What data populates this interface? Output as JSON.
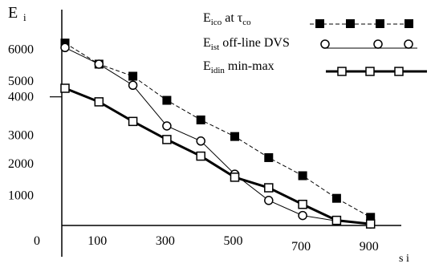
{
  "chart_data": {
    "type": "line",
    "ylabel": "E",
    "ylabel_sub": "i",
    "xlabel_fragment": "s i",
    "x_ticks": [
      "100",
      "300",
      "500",
      "700",
      "900"
    ],
    "y_ticks": [
      "1000",
      "2000",
      "3000",
      "4000",
      "5000",
      "6000"
    ],
    "origin_label": "0",
    "origin_color": "#1f7a7a",
    "xlim": [
      0,
      1000
    ],
    "ylim": [
      0,
      6200
    ],
    "grid": false,
    "legend_position": "top-right",
    "series": [
      {
        "legend_main": "E",
        "legend_sub": "ico",
        "legend_rest": " at τ",
        "legend_rest_sub": "co",
        "marker": "filled-square",
        "line": "dashed",
        "x": [
          0,
          100,
          200,
          300,
          400,
          500,
          600,
          700,
          800,
          900
        ],
        "y": [
          6050,
          5350,
          4950,
          4150,
          3500,
          2950,
          2250,
          1650,
          900,
          270
        ]
      },
      {
        "legend_main": "E",
        "legend_sub": "ist",
        "legend_rest": " off-line DVS",
        "legend_rest_sub": "",
        "marker": "open-circle",
        "line": "solid-thin",
        "x": [
          0,
          100,
          200,
          300,
          400,
          500,
          600,
          700,
          800,
          900
        ],
        "y": [
          5900,
          5350,
          4650,
          3300,
          2800,
          1700,
          830,
          330,
          150,
          50
        ]
      },
      {
        "legend_main": "E",
        "legend_sub": "idin",
        "legend_rest": " min-max",
        "legend_rest_sub": "",
        "marker": "open-square",
        "line": "solid-thick",
        "x": [
          0,
          100,
          200,
          300,
          400,
          500,
          600,
          700,
          800,
          900
        ],
        "y": [
          4550,
          4100,
          3450,
          2850,
          2300,
          1600,
          1250,
          700,
          170,
          50
        ]
      }
    ]
  }
}
